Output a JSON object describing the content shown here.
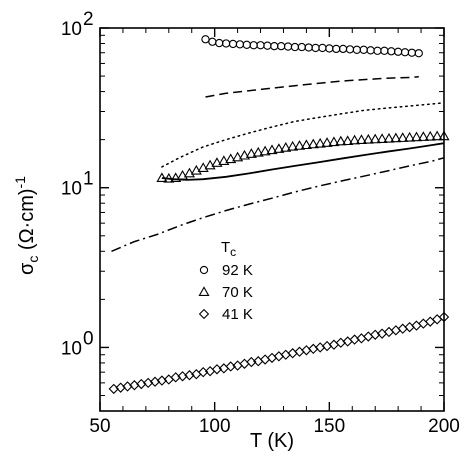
{
  "chart_data": {
    "type": "scatter",
    "title": "",
    "xlabel": "T (K)",
    "ylabel_symbol": "σ",
    "ylabel_sub": "c",
    "ylabel_units": "(Ω·cm)",
    "ylabel_exp": "-1",
    "xlim": [
      50,
      200
    ],
    "ylim": [
      0.4,
      100
    ],
    "yscale": "log",
    "grid": false,
    "xticks": [
      {
        "value": 50,
        "label": "50"
      },
      {
        "value": 100,
        "label": "100"
      },
      {
        "value": 150,
        "label": "150"
      },
      {
        "value": 200,
        "label": "200"
      }
    ],
    "yticks": [
      {
        "value": 1,
        "base": "10",
        "exp": "0"
      },
      {
        "value": 10,
        "base": "10",
        "exp": "1"
      },
      {
        "value": 100,
        "base": "10",
        "exp": "2"
      }
    ],
    "legend": {
      "title": "T",
      "title_sub": "c",
      "position": "center-left",
      "entries": [
        {
          "marker": "circle",
          "label": "92 K"
        },
        {
          "marker": "triangle",
          "label": "70 K"
        },
        {
          "marker": "diamond",
          "label": "41 K"
        }
      ]
    },
    "series": [
      {
        "marker": "circle",
        "x": [
          96,
          99,
          102,
          105,
          108,
          111,
          114,
          117,
          120,
          123,
          126,
          129,
          132,
          135,
          138,
          141,
          144,
          147,
          150,
          153,
          156,
          159,
          162,
          165,
          168,
          171,
          174,
          177,
          180,
          183,
          186,
          189
        ],
        "y": [
          85,
          82,
          80.5,
          80,
          79.5,
          79,
          78.5,
          78,
          78,
          77.5,
          77,
          77,
          76.5,
          76,
          76,
          75.5,
          75,
          75,
          74.5,
          74,
          74,
          73.5,
          73,
          73,
          72.5,
          72,
          72,
          71.5,
          71,
          70.5,
          70,
          69.5
        ]
      },
      {
        "marker": "triangle",
        "x": [
          77,
          80,
          83,
          86,
          89,
          92,
          95,
          98,
          101,
          104,
          107,
          110,
          113,
          116,
          119,
          122,
          125,
          128,
          131,
          134,
          137,
          140,
          143,
          146,
          149,
          152,
          155,
          158,
          161,
          164,
          167,
          170,
          173,
          176,
          179,
          182,
          185,
          188,
          191,
          194,
          197,
          200
        ],
        "y": [
          11.5,
          11.4,
          11.5,
          11.9,
          12.3,
          12.8,
          13.3,
          13.8,
          14.3,
          14.7,
          15.1,
          15.5,
          15.9,
          16.3,
          16.6,
          16.9,
          17.2,
          17.5,
          17.8,
          18.1,
          18.3,
          18.5,
          18.7,
          18.9,
          19.1,
          19.3,
          19.5,
          19.6,
          19.8,
          19.9,
          20.0,
          20.1,
          20.2,
          20.3,
          20.4,
          20.5,
          20.6,
          20.7,
          20.8,
          20.9,
          21.0,
          21.0
        ]
      },
      {
        "marker": "diamond",
        "x": [
          56,
          59,
          62,
          65,
          68,
          71,
          74,
          77,
          80,
          83,
          86,
          89,
          92,
          95,
          98,
          101,
          104,
          107,
          110,
          113,
          116,
          119,
          122,
          125,
          128,
          131,
          134,
          137,
          140,
          143,
          146,
          149,
          152,
          155,
          158,
          161,
          164,
          167,
          170,
          173,
          176,
          179,
          182,
          185,
          188,
          191,
          194,
          197,
          200
        ],
        "y": [
          0.55,
          0.56,
          0.57,
          0.58,
          0.59,
          0.6,
          0.61,
          0.62,
          0.63,
          0.65,
          0.66,
          0.67,
          0.68,
          0.7,
          0.71,
          0.73,
          0.74,
          0.76,
          0.77,
          0.79,
          0.81,
          0.82,
          0.84,
          0.86,
          0.88,
          0.9,
          0.92,
          0.94,
          0.96,
          0.98,
          1.0,
          1.02,
          1.04,
          1.07,
          1.09,
          1.12,
          1.14,
          1.17,
          1.2,
          1.22,
          1.25,
          1.28,
          1.31,
          1.34,
          1.37,
          1.41,
          1.45,
          1.5,
          1.55
        ]
      },
      {
        "style": "dashed",
        "x": [
          96,
          105,
          115,
          125,
          135,
          145,
          155,
          165,
          175,
          185,
          189
        ],
        "y": [
          37,
          39,
          40.5,
          42,
          43.5,
          45,
          46.5,
          47.5,
          48.5,
          49,
          49.5
        ]
      },
      {
        "style": "dotted",
        "x": [
          77,
          85,
          95,
          105,
          115,
          125,
          135,
          145,
          155,
          165,
          175,
          185,
          195,
          200
        ],
        "y": [
          13.5,
          15.5,
          18,
          20,
          22,
          24,
          26,
          27.5,
          29,
          30.5,
          31.5,
          32.5,
          33.5,
          34
        ]
      },
      {
        "style": "solid",
        "x": [
          77,
          82,
          88,
          95,
          105,
          115,
          125,
          135,
          145,
          155,
          165,
          175,
          185,
          195,
          200
        ],
        "y": [
          11.5,
          11.3,
          11.2,
          11.3,
          11.7,
          12.3,
          13,
          13.7,
          14.4,
          15.2,
          16,
          16.8,
          17.6,
          18.5,
          19
        ]
      },
      {
        "style": "dash-dot",
        "x": [
          55,
          65,
          75,
          85,
          95,
          105,
          115,
          125,
          135,
          145,
          155,
          165,
          175,
          185,
          195,
          200
        ],
        "y": [
          4.0,
          4.6,
          5.1,
          5.8,
          6.5,
          7.2,
          7.9,
          8.6,
          9.4,
          10.2,
          11,
          11.8,
          12.7,
          13.7,
          14.7,
          15.4
        ]
      }
    ]
  }
}
